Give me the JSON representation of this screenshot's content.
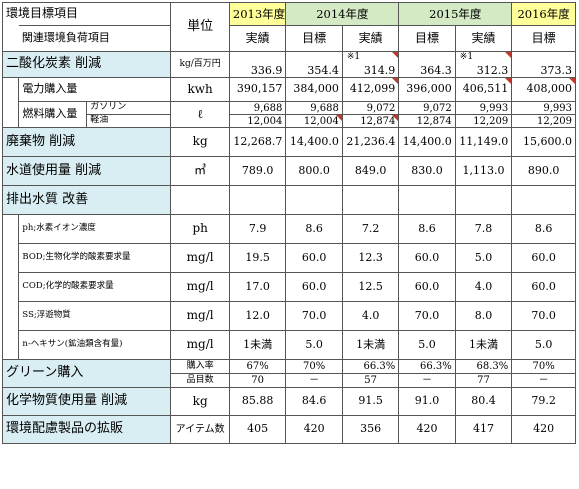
{
  "header": {
    "item_title": "環境目標項目",
    "sub_title": "関連環境負荷項目",
    "unit_label": "単位",
    "years": [
      "2013年度",
      "2014年度",
      "2015年度",
      "2016年度"
    ],
    "col_actual": "実績",
    "col_target": "目標"
  },
  "co2": {
    "label": "二酸化炭素 削減",
    "unit": "kg/百万円",
    "v2013": "336.9",
    "t2014": "354.4",
    "a2014_note": "※1",
    "a2014": "314.9",
    "t2015": "364.3",
    "a2015_note": "※1",
    "a2015": "312.3",
    "t2016": "373.3",
    "electricity": {
      "label": "電力購入量",
      "unit": "kwh",
      "values": [
        "390,157",
        "384,000",
        "412,099",
        "396,000",
        "406,511",
        "408,000"
      ]
    },
    "fuel": {
      "label": "燃料購入量",
      "unit": "ℓ",
      "gasoline_label": "ガソリン",
      "gasoline": [
        "9,688",
        "9,688",
        "9,072",
        "9,072",
        "9,993",
        "9,993"
      ],
      "diesel_label": "軽油",
      "diesel": [
        "12,004",
        "12,004",
        "12,874",
        "12,874",
        "12,209",
        "12,209"
      ]
    }
  },
  "waste": {
    "label": "廃棄物 削減",
    "unit": "kg",
    "values": [
      "12,268.7",
      "14,400.0",
      "21,236.4",
      "14,400.0",
      "11,149.0",
      "15,600.0"
    ]
  },
  "water": {
    "label": "水道使用量 削減",
    "unit": "㎥",
    "values": [
      "789.0",
      "800.0",
      "849.0",
      "830.0",
      "1,113.0",
      "890.0"
    ]
  },
  "effluent": {
    "label": "排出水質 改善",
    "rows": [
      {
        "label": "ph;水素イオン濃度",
        "unit": "ph",
        "values": [
          "7.9",
          "8.6",
          "7.2",
          "8.6",
          "7.8",
          "8.6"
        ]
      },
      {
        "label": "BOD;生物化学的酸素要求量",
        "unit": "mg/l",
        "values": [
          "19.5",
          "60.0",
          "12.3",
          "60.0",
          "5.0",
          "60.0"
        ]
      },
      {
        "label": "COD;化学的酸素要求量",
        "unit": "mg/l",
        "values": [
          "17.0",
          "60.0",
          "12.5",
          "60.0",
          "4.0",
          "60.0"
        ]
      },
      {
        "label": "SS;浮遊物質",
        "unit": "mg/l",
        "values": [
          "12.0",
          "70.0",
          "4.0",
          "70.0",
          "8.0",
          "70.0"
        ]
      },
      {
        "label": "n-ヘキサン(鉱油類含有量)",
        "unit": "mg/l",
        "values": [
          "1未満",
          "5.0",
          "1未満",
          "5.0",
          "1未満",
          "5.0"
        ]
      }
    ]
  },
  "green": {
    "label": "グリーン購入",
    "rate_label": "購入率",
    "rate": [
      "67%",
      "70%",
      "66.3%",
      "66.3%",
      "68.3%",
      "70%"
    ],
    "items_label": "品目数",
    "items": [
      "70",
      "－",
      "57",
      "－",
      "77",
      "－"
    ]
  },
  "chemical": {
    "label": "化学物質使用量 削減",
    "unit": "kg",
    "values": [
      "85.88",
      "84.6",
      "91.5",
      "91.0",
      "80.4",
      "79.2"
    ]
  },
  "eco_products": {
    "label": "環境配慮製品の拡販",
    "unit": "アイテム数",
    "values": [
      "405",
      "420",
      "356",
      "420",
      "417",
      "420"
    ]
  }
}
